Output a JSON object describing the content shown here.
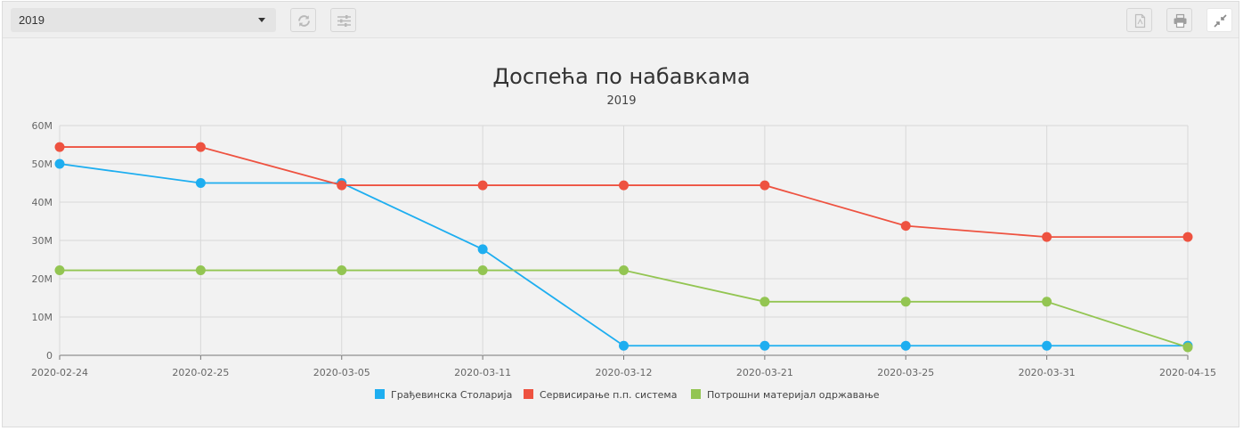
{
  "toolbar": {
    "year_value": "2019",
    "buttons": [
      {
        "name": "refresh-icon"
      },
      {
        "name": "sliders-icon"
      },
      {
        "name": "pdf-icon"
      },
      {
        "name": "print-icon"
      },
      {
        "name": "collapse-icon"
      }
    ]
  },
  "colors": {
    "series_1": "#1eaef0",
    "series_2": "#ee5240",
    "series_3": "#93c552"
  },
  "chart_data": {
    "type": "line",
    "title": "Доспећа по набавкама",
    "subtitle": "2019",
    "categories": [
      "2020-02-24",
      "2020-02-25",
      "2020-03-05",
      "2020-03-11",
      "2020-03-12",
      "2020-03-21",
      "2020-03-25",
      "2020-03-31",
      "2020-04-15"
    ],
    "ylim": [
      0,
      60000000
    ],
    "yticks": [
      "0",
      "10M",
      "20M",
      "30M",
      "40M",
      "50M",
      "60M"
    ],
    "grid": true,
    "legend": "bottom",
    "series": [
      {
        "name": "Грађевинска Столарија",
        "values": [
          50000000,
          45000000,
          45000000,
          27700000,
          2500000,
          2500000,
          2500000,
          2500000,
          2500000
        ]
      },
      {
        "name": "Сервисирање п.п. система",
        "values": [
          54400000,
          54400000,
          44400000,
          44400000,
          44400000,
          44400000,
          33800000,
          30900000,
          30900000
        ]
      },
      {
        "name": "Потрошни материјал одржавање",
        "values": [
          22200000,
          22200000,
          22200000,
          22200000,
          22200000,
          14000000,
          14000000,
          14000000,
          2100000
        ]
      }
    ]
  }
}
